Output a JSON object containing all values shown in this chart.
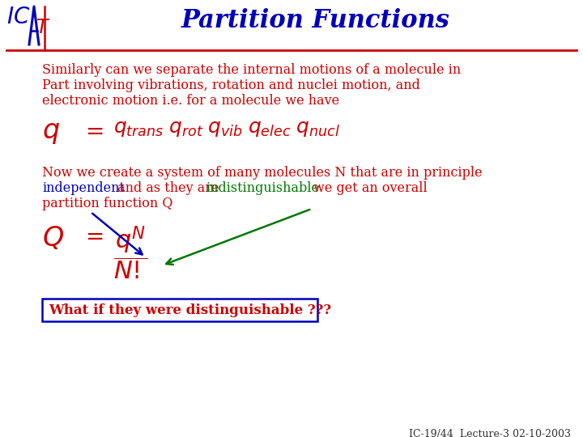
{
  "title": "Partition Functions",
  "title_color": "#0000bb",
  "title_fontsize": 22,
  "bg_color": "#ffffff",
  "text_color_red": "#cc0000",
  "text_color_blue": "#0000bb",
  "text_color_green": "#007700",
  "para1_line1": "Similarly can we separate the internal motions of a molecule in",
  "para1_line2": "Part involving vibrations, rotation and nuclei motion, and",
  "para1_line3": "electronic motion i.e. for a molecule we have",
  "para2_line1": "Now we create a system of many molecules N that are in principle",
  "para2_line2_blue": "independent",
  "para2_line2_red": " and as they are ",
  "para2_line2_green": "indistinguishable",
  "para2_line2_red2": " we get an overall",
  "para2_line3": "partition function Q",
  "box_text": "What if they were distinguishable ???",
  "footer": "IC-19/44  Lecture-3 02-10-2003",
  "footer_color": "#333333",
  "footer_fontsize": 9
}
